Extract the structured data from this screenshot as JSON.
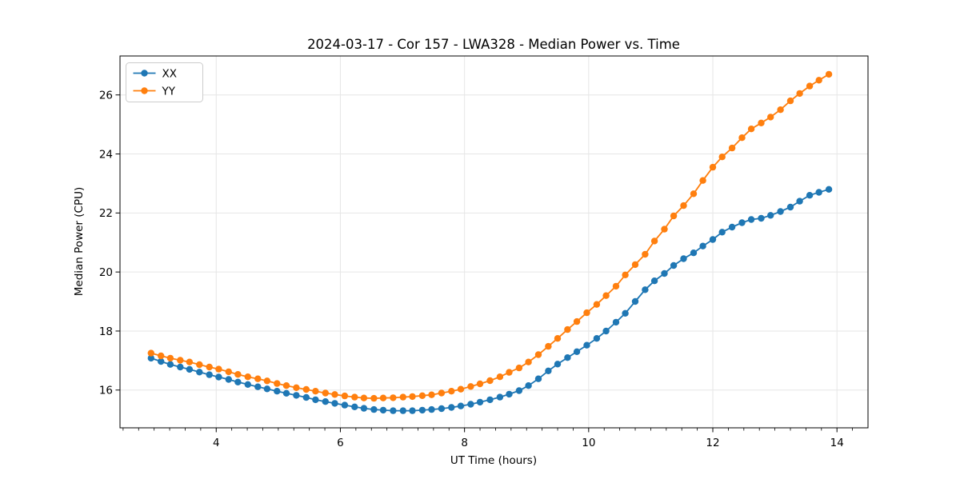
{
  "chart_data": {
    "type": "line",
    "title": "2024-03-17 - Cor 157 - LWA328 - Median Power vs. Time",
    "xlabel": "UT Time (hours)",
    "ylabel": "Median Power (CPU)",
    "xlim": [
      2.45,
      14.5
    ],
    "ylim": [
      14.72,
      27.32
    ],
    "xticks": [
      4,
      6,
      8,
      10,
      12,
      14
    ],
    "yticks": [
      16,
      18,
      20,
      22,
      24,
      26
    ],
    "x_minor_step": 0.25,
    "grid": true,
    "legend_position": "upper-left",
    "x": [
      2.95,
      3.11,
      3.26,
      3.42,
      3.57,
      3.73,
      3.89,
      4.04,
      4.2,
      4.35,
      4.51,
      4.67,
      4.82,
      4.98,
      5.13,
      5.29,
      5.45,
      5.6,
      5.76,
      5.91,
      6.07,
      6.23,
      6.38,
      6.54,
      6.69,
      6.85,
      7.01,
      7.16,
      7.32,
      7.47,
      7.63,
      7.79,
      7.94,
      8.1,
      8.25,
      8.41,
      8.57,
      8.72,
      8.88,
      9.03,
      9.19,
      9.35,
      9.5,
      9.66,
      9.81,
      9.97,
      10.13,
      10.28,
      10.44,
      10.59,
      10.75,
      10.91,
      11.06,
      11.22,
      11.37,
      11.53,
      11.69,
      11.84,
      12.0,
      12.15,
      12.31,
      12.47,
      12.62,
      12.78,
      12.93,
      13.09,
      13.25,
      13.4,
      13.56,
      13.71,
      13.87
    ],
    "series": [
      {
        "name": "XX",
        "color": "#1f77b4",
        "values": [
          17.08,
          16.97,
          16.87,
          16.78,
          16.7,
          16.61,
          16.52,
          16.44,
          16.36,
          16.27,
          16.19,
          16.11,
          16.04,
          15.96,
          15.89,
          15.82,
          15.75,
          15.67,
          15.61,
          15.55,
          15.49,
          15.43,
          15.38,
          15.34,
          15.32,
          15.3,
          15.3,
          15.3,
          15.32,
          15.34,
          15.37,
          15.41,
          15.46,
          15.52,
          15.59,
          15.67,
          15.76,
          15.86,
          15.98,
          16.15,
          16.38,
          16.65,
          16.88,
          17.1,
          17.3,
          17.52,
          17.75,
          18.0,
          18.3,
          18.6,
          19.0,
          19.4,
          19.7,
          19.95,
          20.22,
          20.45,
          20.65,
          20.88,
          21.1,
          21.35,
          21.52,
          21.67,
          21.78,
          21.82,
          21.92,
          22.05,
          22.2,
          22.4,
          22.6,
          22.7,
          22.8
        ]
      },
      {
        "name": "YY",
        "color": "#ff7f0e",
        "values": [
          17.25,
          17.16,
          17.08,
          17.01,
          16.95,
          16.86,
          16.78,
          16.71,
          16.62,
          16.53,
          16.45,
          16.38,
          16.31,
          16.22,
          16.15,
          16.08,
          16.02,
          15.96,
          15.9,
          15.85,
          15.8,
          15.76,
          15.73,
          15.72,
          15.73,
          15.74,
          15.76,
          15.78,
          15.81,
          15.84,
          15.9,
          15.96,
          16.03,
          16.12,
          16.21,
          16.32,
          16.45,
          16.6,
          16.75,
          16.95,
          17.2,
          17.48,
          17.75,
          18.05,
          18.32,
          18.62,
          18.9,
          19.2,
          19.52,
          19.9,
          20.25,
          20.6,
          21.05,
          21.45,
          21.9,
          22.25,
          22.65,
          23.1,
          23.55,
          23.9,
          24.2,
          24.55,
          24.85,
          25.05,
          25.25,
          25.5,
          25.8,
          26.05,
          26.3,
          26.5,
          26.7
        ]
      }
    ],
    "colors": {
      "grid": "#e6e6e6",
      "spine": "#000000",
      "text": "#000000",
      "background": "#ffffff",
      "legend_border": "#cccccc",
      "legend_background": "#ffffff"
    }
  }
}
